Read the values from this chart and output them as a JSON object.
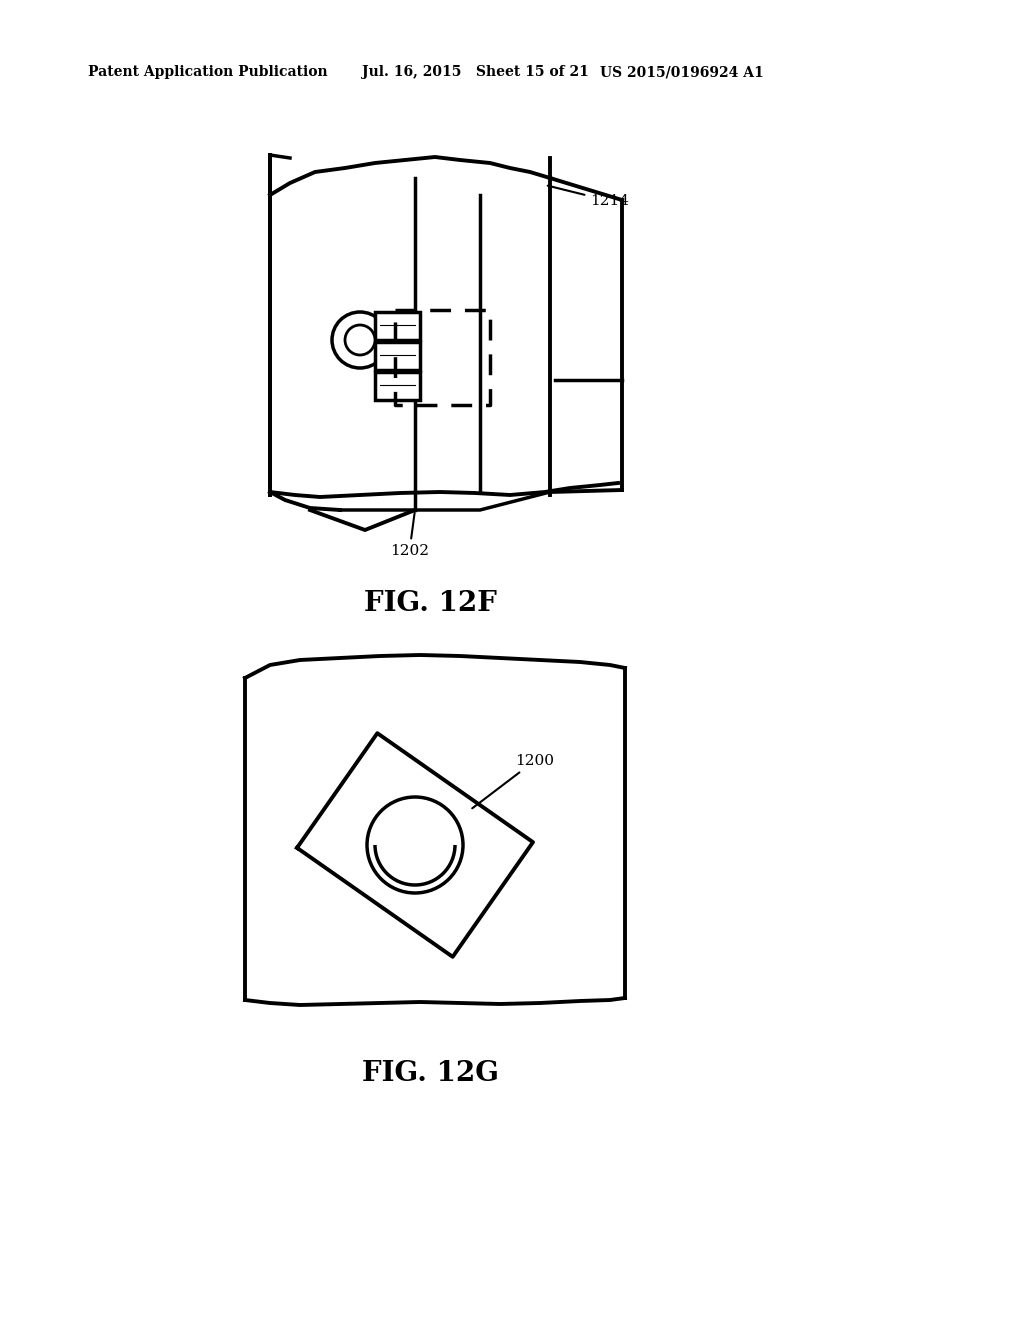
{
  "background_color": "#ffffff",
  "header_left": "Patent Application Publication",
  "header_middle": "Jul. 16, 2015   Sheet 15 of 21",
  "header_right": "US 2015/0196924 A1",
  "fig12f_label": "FIG. 12F",
  "fig12g_label": "FIG. 12G",
  "label_1214": "1214",
  "label_1202": "1202",
  "label_1200": "1200",
  "line_color": "#000000",
  "line_width": 2.5,
  "enclosure_lw": 2.8
}
